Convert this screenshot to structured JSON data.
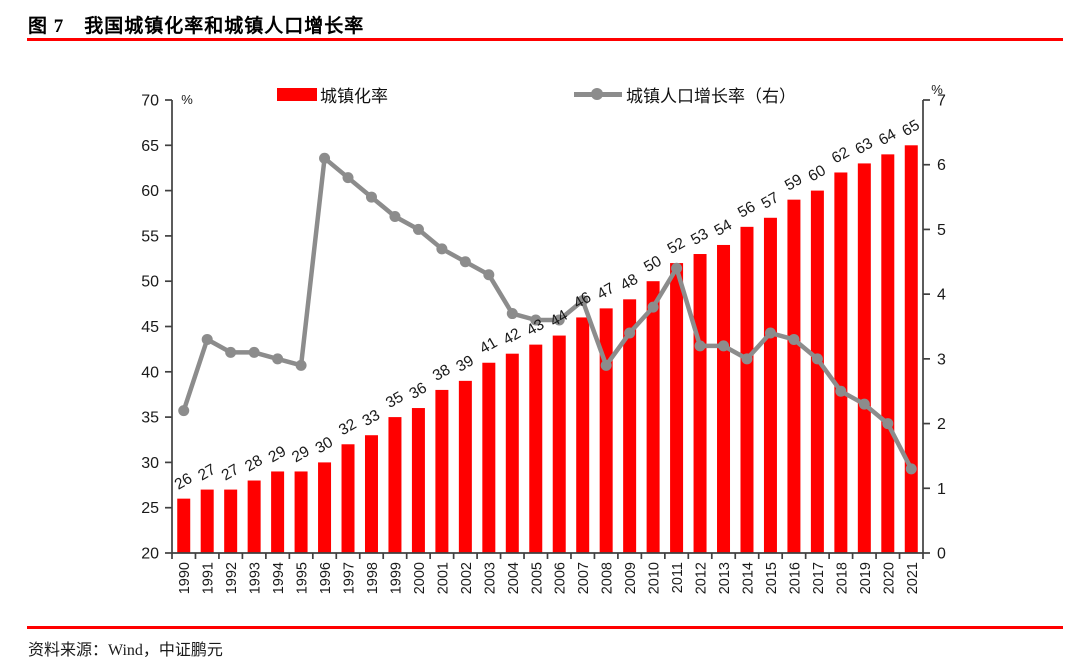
{
  "page": {
    "title": "图 7　我国城镇化率和城镇人口增长率",
    "source": "资料来源：Wind，中证鹏元",
    "accent_color": "#ff0000"
  },
  "chart_data": {
    "type": "bar",
    "subtype": "combo-bar-line-dual-axis",
    "title": "我国城镇化率和城镇人口增长率",
    "categories": [
      "1990",
      "1991",
      "1992",
      "1993",
      "1994",
      "1995",
      "1996",
      "1997",
      "1998",
      "1999",
      "2000",
      "2001",
      "2002",
      "2003",
      "2004",
      "2005",
      "2006",
      "2007",
      "2008",
      "2009",
      "2010",
      "2011",
      "2012",
      "2013",
      "2014",
      "2015",
      "2016",
      "2017",
      "2018",
      "2019",
      "2020",
      "2021"
    ],
    "series": [
      {
        "name": "城镇化率",
        "chart": "bar",
        "axis": "left",
        "color": "#ff0000",
        "data_labels_shown": true,
        "values": [
          26,
          27,
          27,
          28,
          29,
          29,
          30,
          32,
          33,
          35,
          36,
          38,
          39,
          41,
          42,
          43,
          44,
          46,
          47,
          48,
          50,
          52,
          53,
          54,
          56,
          57,
          59,
          60,
          62,
          63,
          64,
          65
        ]
      },
      {
        "name": "城镇人口增长率（右）",
        "chart": "line",
        "axis": "right",
        "color": "#8c8c8c",
        "marker": "circle",
        "values": [
          2.2,
          3.3,
          3.1,
          3.1,
          3.0,
          2.9,
          6.1,
          5.8,
          5.5,
          5.2,
          5.0,
          4.7,
          4.5,
          4.3,
          3.7,
          3.6,
          3.6,
          3.9,
          2.9,
          3.4,
          3.8,
          4.4,
          3.2,
          3.2,
          3.0,
          3.4,
          3.3,
          3.0,
          2.5,
          2.3,
          2.0,
          1.3
        ]
      }
    ],
    "left_axis": {
      "unit": "%",
      "min": 20,
      "max": 70,
      "step": 5,
      "ticks": [
        20,
        25,
        30,
        35,
        40,
        45,
        50,
        55,
        60,
        65,
        70
      ]
    },
    "right_axis": {
      "unit": "%",
      "min": 0,
      "max": 7,
      "step": 1,
      "ticks": [
        0,
        1,
        2,
        3,
        4,
        5,
        6,
        7
      ]
    },
    "legend_position": "top",
    "grid": false
  }
}
